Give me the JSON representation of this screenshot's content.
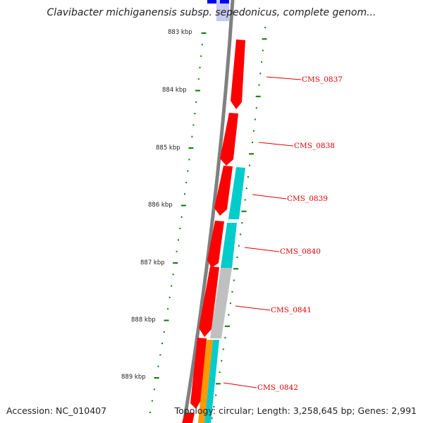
{
  "header": {
    "title": "Clavibacter michiganensis subsp. sepedonicus, complete genom..."
  },
  "footer": {
    "accession": "Accession: NC_010407",
    "topology": "Topology: circular; Length: 3,258,645 bp; Genes: 2,991"
  },
  "scale_labels": [
    "883 kbp",
    "884 kbp",
    "885 kbp",
    "886 kbp",
    "887 kbp",
    "888 kbp",
    "889 kbp"
  ],
  "genes": [
    {
      "label": "CMS_0837"
    },
    {
      "label": "CMS_0838"
    },
    {
      "label": "CMS_0839"
    },
    {
      "label": "CMS_0840"
    },
    {
      "label": "CMS_0841"
    },
    {
      "label": "CMS_0842"
    }
  ],
  "colors": {
    "cds": "#ff0000",
    "cog_cyan": "#00cccc",
    "cog_gray": "#c0c0c0",
    "cog_orange": "#ff9900",
    "backbone": "#808080",
    "tick": "#0a7a0a",
    "top_blue": "#0000ee",
    "top_lightblue": "#c8c8f4"
  }
}
